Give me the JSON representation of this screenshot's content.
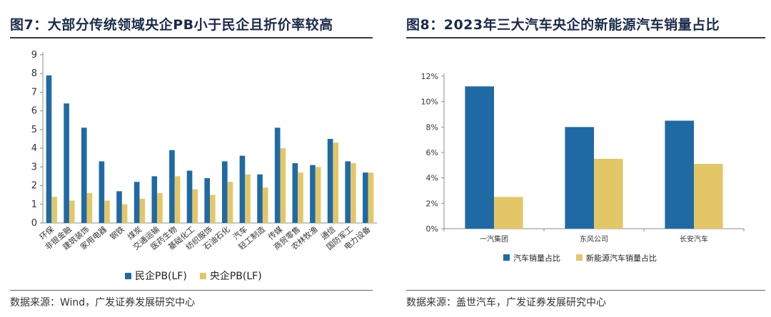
{
  "left": {
    "title": "图7：大部分传统领域央企PB小于民企且折价率较高",
    "source": "数据来源：Wind，广发证券发展研究中心",
    "chart_data": {
      "type": "bar",
      "categories": [
        "环保",
        "非银金融",
        "建筑装饰",
        "家用电器",
        "钢铁",
        "煤炭",
        "交通运输",
        "医药生物",
        "基础化工",
        "纺织服饰",
        "石油石化",
        "汽车",
        "轻工制造",
        "传媒",
        "商贸零售",
        "农林牧渔",
        "通信",
        "国防军工",
        "电力设备"
      ],
      "series": [
        {
          "name": "民企PB(LF)",
          "color": "#1f6aa5",
          "values": [
            7.9,
            6.4,
            5.1,
            3.3,
            1.7,
            2.2,
            2.5,
            3.9,
            2.8,
            2.4,
            3.3,
            3.6,
            2.6,
            5.1,
            3.2,
            3.1,
            4.5,
            3.3,
            2.7
          ]
        },
        {
          "name": "央企PB(LF)",
          "color": "#e3c766",
          "values": [
            1.4,
            1.2,
            1.6,
            1.2,
            1.0,
            1.3,
            1.6,
            2.5,
            1.8,
            1.5,
            2.2,
            2.6,
            1.9,
            4.0,
            2.7,
            3.0,
            4.3,
            3.2,
            2.7
          ]
        }
      ],
      "ylim": [
        0,
        9
      ],
      "yticks": [
        "0",
        "1",
        "2",
        "3",
        "4",
        "5",
        "6",
        "7",
        "8",
        "9"
      ],
      "grid": false,
      "legend_position": "bottom"
    }
  },
  "right": {
    "title": "图8：2023年三大汽车央企的新能源汽车销量占比",
    "source": "数据来源：盖世汽车，广发证券发展研究中心",
    "chart_data": {
      "type": "bar",
      "categories": [
        "一汽集团",
        "东风公司",
        "长安汽车"
      ],
      "series": [
        {
          "name": "汽车销量占比",
          "color": "#1f6aa5",
          "values": [
            11.2,
            8.0,
            8.5
          ]
        },
        {
          "name": "新能源汽车销量占比",
          "color": "#e3c766",
          "values": [
            2.5,
            5.5,
            5.1
          ]
        }
      ],
      "ylim": [
        0,
        12
      ],
      "yticks": [
        "0%",
        "2%",
        "4%",
        "6%",
        "8%",
        "10%",
        "12%"
      ],
      "grid": false,
      "legend_position": "bottom"
    }
  }
}
